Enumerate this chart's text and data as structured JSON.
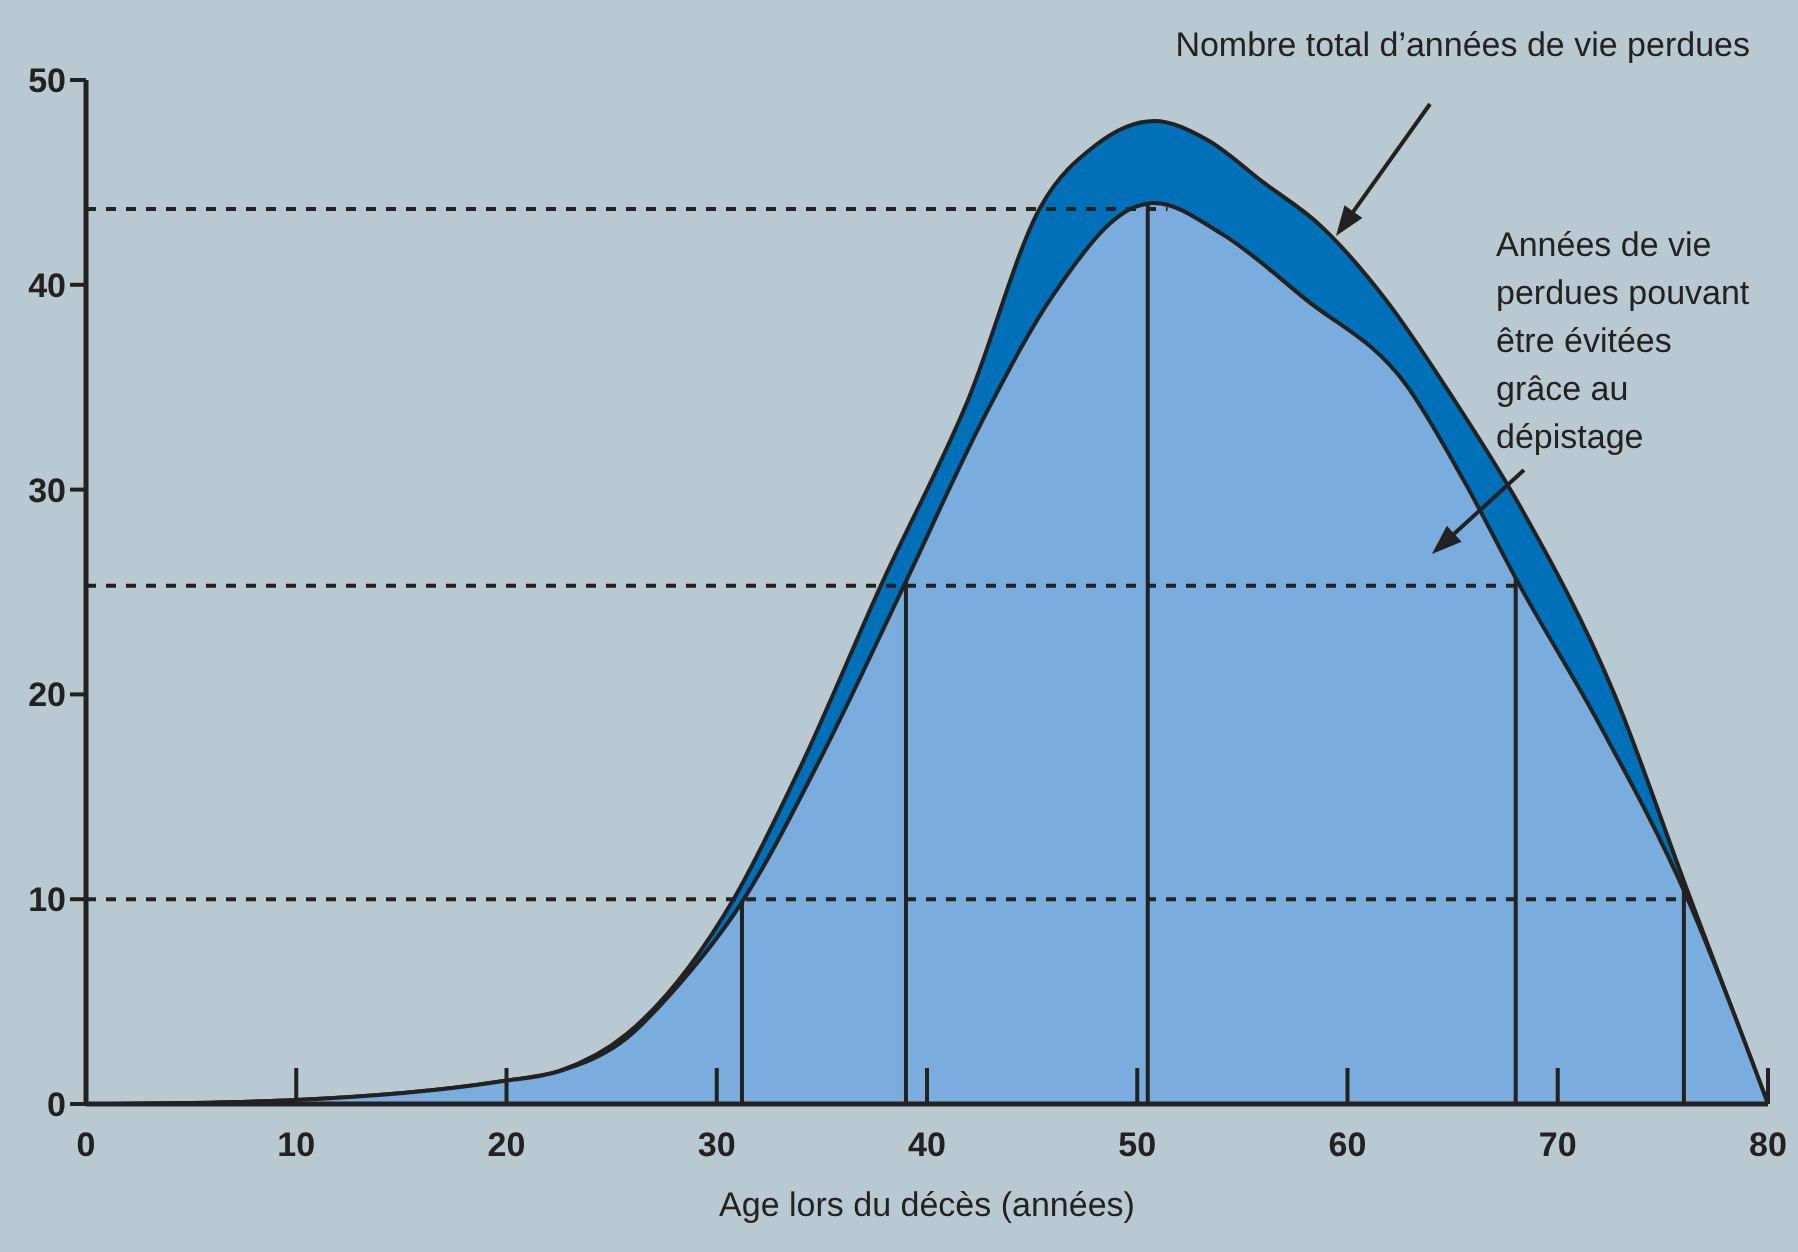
{
  "chart_data": {
    "type": "area",
    "xlabel": "Age lors du décès (années)",
    "xlim": [
      0,
      80
    ],
    "xticks": [
      0,
      10,
      20,
      30,
      40,
      50,
      60,
      70,
      80
    ],
    "ylim": [
      0,
      50
    ],
    "yticks": [
      0,
      10,
      20,
      30,
      40,
      50
    ],
    "series": [
      {
        "color": "#0070b8",
        "x": [
          1.4,
          10,
          19.7,
          22.5,
          25.7,
          30.8,
          34,
          37.8,
          42,
          45.4,
          48,
          50.8,
          53.3,
          56,
          58.7,
          61.8,
          65,
          68.2,
          72.7,
          76.1,
          80
        ],
        "values": [
          0,
          0.2,
          1.1,
          1.6,
          3.4,
          10,
          16.5,
          25.3,
          34.5,
          43.8,
          46.8,
          48,
          47.1,
          45,
          42.9,
          39.3,
          34.5,
          29.2,
          20,
          10.6,
          0
        ]
      },
      {
        "color": "#7aaddd",
        "x": [
          1.4,
          10,
          19.7,
          22.5,
          25.7,
          28,
          31.1,
          35,
          38.9,
          42.8,
          46,
          49.9,
          50.8,
          54,
          58,
          62.8,
          65.5,
          68.2,
          72,
          76.1,
          80
        ],
        "values": [
          0,
          0.2,
          1.1,
          1.6,
          3.2,
          5.6,
          9.7,
          17,
          25.3,
          33.7,
          39.5,
          43.8,
          44,
          42.5,
          39.3,
          35.1,
          30.5,
          25.3,
          18.5,
          10.2,
          0
        ]
      }
    ],
    "ref_lines": [
      {
        "axis": "y",
        "value": 43.7,
        "line_style": "dashed"
      },
      {
        "axis": "y",
        "value": 25.3,
        "line_style": "dashed"
      },
      {
        "axis": "y",
        "value": 10,
        "line_style": "dashed"
      },
      {
        "axis": "x",
        "value": 31.2,
        "line_style": "solid"
      },
      {
        "axis": "x",
        "value": 39,
        "line_style": "solid"
      },
      {
        "axis": "x",
        "value": 50.5,
        "line_style": "solid"
      },
      {
        "axis": "x",
        "value": 68,
        "line_style": "solid"
      },
      {
        "axis": "x",
        "value": 76,
        "line_style": "solid"
      }
    ],
    "annotations": [
      "Nombre total d’années de vie perdues",
      "Années de vie perdues pouvant être évitées grâce au dépistage"
    ]
  }
}
